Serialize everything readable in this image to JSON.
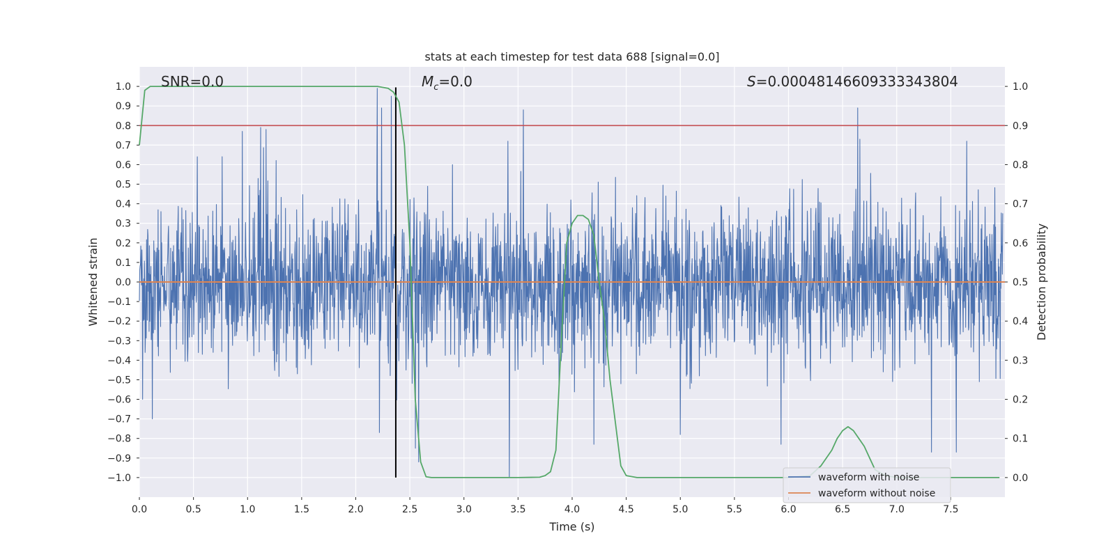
{
  "chart_data": {
    "type": "line",
    "title": "stats at each timestep for test data 688 [signal=0.0]",
    "xlabel": "Time (s)",
    "ylabel_left": "Whitened strain",
    "ylabel_right": "Detection probability",
    "xlim": [
      0.0,
      8.0
    ],
    "ylim_left": [
      -1.1,
      1.1
    ],
    "ylim_right": [
      -0.05,
      1.05
    ],
    "x_ticks": [
      "0.0",
      "0.5",
      "1.0",
      "1.5",
      "2.0",
      "2.5",
      "3.0",
      "3.5",
      "4.0",
      "4.5",
      "5.0",
      "5.5",
      "6.0",
      "6.5",
      "7.0",
      "7.5"
    ],
    "y_left_ticks": [
      "1.0",
      "0.9",
      "0.8",
      "0.7",
      "0.6",
      "0.5",
      "0.4",
      "0.3",
      "0.2",
      "0.1",
      "0.0",
      "−0.1",
      "−0.2",
      "−0.3",
      "−0.4",
      "−0.5",
      "−0.6",
      "−0.7",
      "−0.8",
      "−0.9",
      "−1.0"
    ],
    "y_right_ticks": [
      "1.0",
      "0.9",
      "0.8",
      "0.7",
      "0.6",
      "0.5",
      "0.4",
      "0.3",
      "0.2",
      "0.1",
      "0.0"
    ],
    "grid": true,
    "annotations": {
      "snr": "SNR=0.0",
      "mc_symbol": "M",
      "mc_sub": "c",
      "mc_value": "=0.0",
      "s_symbol": "S",
      "s_value": "=0.00048146609333343804"
    },
    "vertical_marker_x": 2.37,
    "threshold_right": 0.9,
    "series": [
      {
        "name": "waveform with noise",
        "color": "#4c72b0",
        "description": "noise-dominated whitened strain, mostly within ±0.4, peaks near ±1.0",
        "spikes": [
          [
            0.95,
            0.77
          ],
          [
            1.12,
            0.79
          ],
          [
            1.17,
            0.78
          ],
          [
            2.2,
            0.99
          ],
          [
            2.24,
            0.89
          ],
          [
            2.33,
            0.95
          ],
          [
            3.55,
            0.88
          ],
          [
            6.64,
            0.89
          ],
          [
            6.66,
            0.73
          ],
          [
            0.03,
            -0.6
          ],
          [
            0.12,
            -0.7
          ],
          [
            2.22,
            -0.77
          ],
          [
            2.55,
            -0.85
          ],
          [
            2.58,
            -0.92
          ],
          [
            3.42,
            -1.0
          ],
          [
            4.2,
            -0.83
          ],
          [
            5.93,
            -0.83
          ],
          [
            7.32,
            -0.87
          ],
          [
            7.55,
            -0.87
          ],
          [
            5.0,
            -0.78
          ]
        ]
      },
      {
        "name": "waveform without noise",
        "color": "#dd8452",
        "values_const": 0.0
      },
      {
        "name": "detection probability",
        "color": "#55a868",
        "axis": "right",
        "points": [
          [
            0.0,
            0.85
          ],
          [
            0.05,
            0.99
          ],
          [
            0.1,
            1.0
          ],
          [
            0.5,
            1.0
          ],
          [
            1.0,
            1.0
          ],
          [
            1.5,
            1.0
          ],
          [
            2.0,
            1.0
          ],
          [
            2.2,
            1.0
          ],
          [
            2.3,
            0.995
          ],
          [
            2.35,
            0.985
          ],
          [
            2.4,
            0.96
          ],
          [
            2.45,
            0.85
          ],
          [
            2.5,
            0.6
          ],
          [
            2.55,
            0.2
          ],
          [
            2.6,
            0.04
          ],
          [
            2.65,
            0.002
          ],
          [
            2.7,
            0.0
          ],
          [
            3.0,
            0.0
          ],
          [
            3.5,
            0.0
          ],
          [
            3.7,
            0.001
          ],
          [
            3.75,
            0.005
          ],
          [
            3.8,
            0.015
          ],
          [
            3.85,
            0.07
          ],
          [
            3.9,
            0.35
          ],
          [
            3.95,
            0.6
          ],
          [
            4.0,
            0.65
          ],
          [
            4.05,
            0.67
          ],
          [
            4.1,
            0.67
          ],
          [
            4.15,
            0.66
          ],
          [
            4.2,
            0.62
          ],
          [
            4.25,
            0.5
          ],
          [
            4.3,
            0.4
          ],
          [
            4.35,
            0.25
          ],
          [
            4.4,
            0.14
          ],
          [
            4.45,
            0.03
          ],
          [
            4.5,
            0.005
          ],
          [
            4.6,
            0.0
          ],
          [
            5.0,
            0.0
          ],
          [
            6.0,
            0.0
          ],
          [
            6.2,
            0.005
          ],
          [
            6.3,
            0.03
          ],
          [
            6.4,
            0.07
          ],
          [
            6.45,
            0.1
          ],
          [
            6.5,
            0.12
          ],
          [
            6.55,
            0.13
          ],
          [
            6.6,
            0.12
          ],
          [
            6.7,
            0.08
          ],
          [
            6.75,
            0.05
          ],
          [
            6.8,
            0.02
          ],
          [
            6.9,
            0.005
          ],
          [
            7.0,
            0.0
          ],
          [
            7.5,
            0.0
          ],
          [
            7.95,
            0.0
          ]
        ]
      },
      {
        "name": "threshold",
        "color": "#c44e52",
        "axis": "right",
        "value": 0.9
      }
    ],
    "legend": {
      "position": "lower-right",
      "entries": [
        {
          "label": "waveform with noise",
          "color": "#4c72b0"
        },
        {
          "label": "waveform without noise",
          "color": "#dd8452"
        }
      ]
    }
  }
}
